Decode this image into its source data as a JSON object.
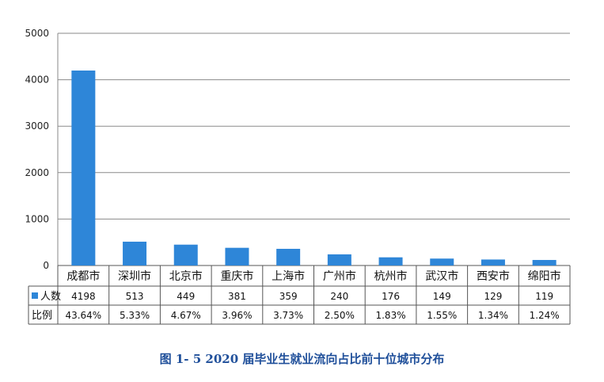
{
  "chart_data": {
    "type": "bar",
    "categories": [
      "成都市",
      "深圳市",
      "北京市",
      "重庆市",
      "上海市",
      "广州市",
      "杭州市",
      "武汉市",
      "西安市",
      "绵阳市"
    ],
    "series": [
      {
        "name": "人数",
        "values": [
          4198,
          513,
          449,
          381,
          359,
          240,
          176,
          149,
          129,
          119
        ],
        "color": "#2e86d8"
      }
    ],
    "table_rows": [
      {
        "label": "人数",
        "legend_key": true,
        "values": [
          "4198",
          "513",
          "449",
          "381",
          "359",
          "240",
          "176",
          "149",
          "129",
          "119"
        ]
      },
      {
        "label": "比例",
        "legend_key": false,
        "values": [
          "43.64%",
          "5.33%",
          "4.67%",
          "3.96%",
          "3.73%",
          "2.50%",
          "1.83%",
          "1.55%",
          "1.34%",
          "1.24%"
        ]
      }
    ],
    "ylim": [
      0,
      5000
    ],
    "yticks": [
      0,
      1000,
      2000,
      3000,
      4000,
      5000
    ],
    "grid": true,
    "title": "图 1- 5    2020 届毕业生就业流向占比前十位城市分布"
  }
}
